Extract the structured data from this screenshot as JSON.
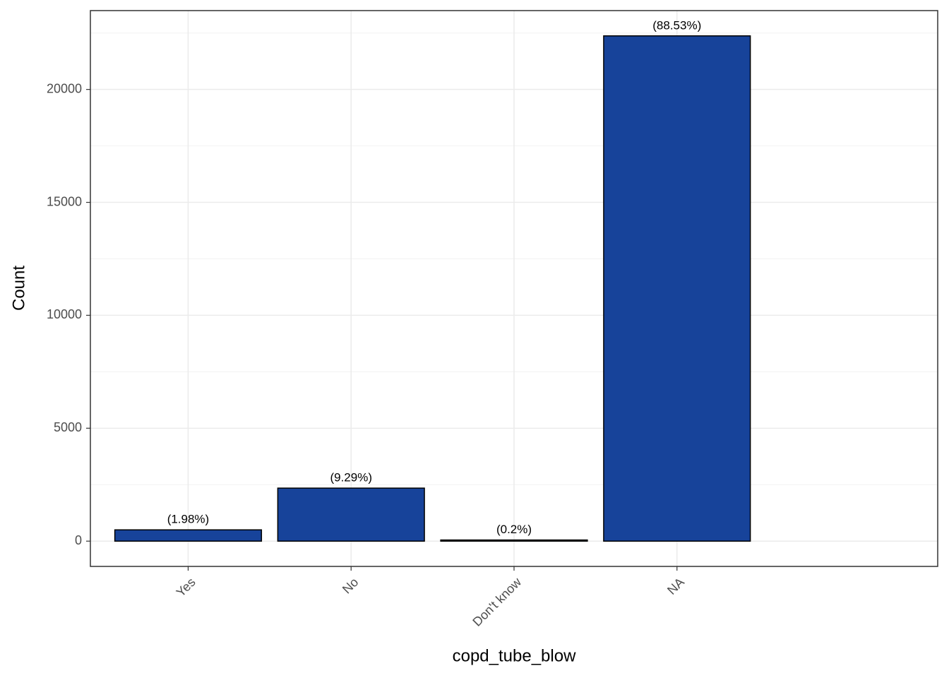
{
  "chart_data": {
    "type": "bar",
    "x_label": "copd_tube_blow",
    "y_label": "Count",
    "categories": [
      "Yes",
      "No",
      "Don't know",
      "NA"
    ],
    "values": [
      500,
      2348,
      51,
      22372
    ],
    "percent_labels": [
      {
        "value": 1.98,
        "label": "(1.98%)"
      },
      {
        "value": 9.29,
        "label": "(9.29%)"
      },
      {
        "value": 0.2,
        "label": "(0.2%)"
      },
      {
        "value": 88.53,
        "label": "(88.53%)"
      }
    ],
    "color": "#17439a",
    "ylim": [
      -1119,
      23491
    ],
    "yticks": [
      0,
      5000,
      10000,
      15000,
      20000
    ],
    "minor_yticks": [
      2500,
      7500,
      12500,
      17500,
      22500
    ],
    "grid": true
  }
}
